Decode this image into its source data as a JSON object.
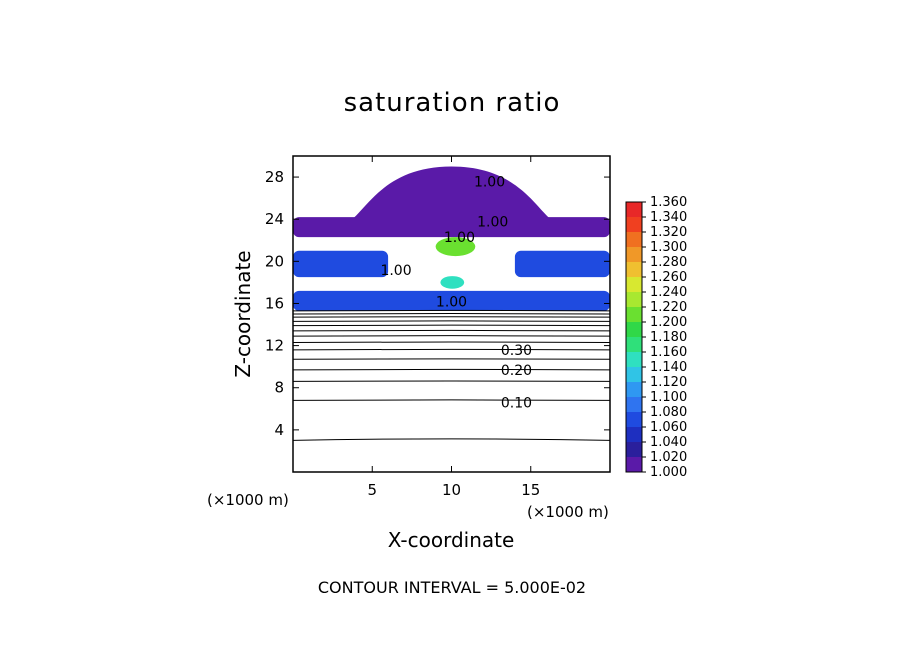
{
  "chart_data": {
    "type": "heatmap",
    "title": "saturation ratio",
    "xlabel": "X-coordinate",
    "ylabel": "Z-coordinate",
    "x_unit_left": "(×1000 m)",
    "x_unit_right": "(×1000 m)",
    "xlim": [
      0,
      20
    ],
    "ylim": [
      0,
      30
    ],
    "x_ticks": [
      5,
      10,
      15
    ],
    "y_ticks": [
      4,
      8,
      12,
      16,
      20,
      24,
      28
    ],
    "footer": "CONTOUR INTERVAL = 5.000E-02",
    "colorbar": {
      "levels": [
        "1.000",
        "1.020",
        "1.040",
        "1.060",
        "1.080",
        "1.100",
        "1.120",
        "1.140",
        "1.160",
        "1.180",
        "1.200",
        "1.220",
        "1.240",
        "1.260",
        "1.280",
        "1.300",
        "1.320",
        "1.340",
        "1.360"
      ],
      "colors": [
        "#5a1aa8",
        "#2a1f9c",
        "#1e2fc0",
        "#1f4be0",
        "#2f74f0",
        "#2f98f2",
        "#30c4e6",
        "#2fe0c0",
        "#2fe07a",
        "#30d848",
        "#6ae030",
        "#a8e830",
        "#d8e830",
        "#f0c030",
        "#f09828",
        "#f07020",
        "#f04020",
        "#e82828",
        "#f08080"
      ]
    },
    "contour_labels": [
      {
        "text": "1.00",
        "x": 12.4,
        "z": 27.6
      },
      {
        "text": "1.00",
        "x": 12.6,
        "z": 23.8
      },
      {
        "text": "1.00",
        "x": 10.5,
        "z": 22.3
      },
      {
        "text": "1.00",
        "x": 6.5,
        "z": 19.2
      },
      {
        "text": "1.00",
        "x": 10.0,
        "z": 16.2
      },
      {
        "text": "0.30",
        "x": 14.1,
        "z": 11.6
      },
      {
        "text": "0.20",
        "x": 14.1,
        "z": 9.7
      },
      {
        "text": "0.10",
        "x": 14.1,
        "z": 6.6
      }
    ],
    "contour_levels_z": [
      3.0,
      6.8,
      8.6,
      9.7,
      10.7,
      11.6,
      12.3,
      12.9,
      13.4,
      13.9,
      14.3,
      14.7,
      15.0,
      15.3
    ],
    "color_regions": [
      {
        "name": "upper-band",
        "level": "1.000",
        "x": [
          0,
          20
        ],
        "z": [
          22.3,
          24.2
        ]
      },
      {
        "name": "dome",
        "level": "1.000",
        "x": [
          3,
          17
        ],
        "z": [
          23.5,
          29
        ]
      },
      {
        "name": "left-band-20",
        "level": "1.060",
        "x": [
          0,
          6
        ],
        "z": [
          18.5,
          21
        ]
      },
      {
        "name": "right-band-20",
        "level": "1.060",
        "x": [
          14,
          20
        ],
        "z": [
          18.5,
          21
        ]
      },
      {
        "name": "center-blob-21",
        "level": "1.200",
        "x": [
          9,
          11.5
        ],
        "z": [
          20.5,
          22.3
        ]
      },
      {
        "name": "center-blob-18",
        "level": "1.140",
        "x": [
          9.3,
          10.8
        ],
        "z": [
          17.4,
          18.6
        ]
      },
      {
        "name": "band-16",
        "level": "1.060",
        "x": [
          0,
          20
        ],
        "z": [
          15.3,
          17.2
        ]
      }
    ]
  }
}
